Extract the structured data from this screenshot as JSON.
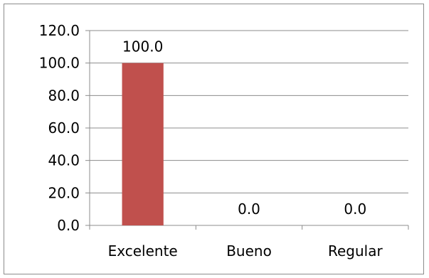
{
  "chart_data": {
    "type": "bar",
    "categories": [
      "Excelente",
      "Bueno",
      "Regular"
    ],
    "values": [
      100.0,
      0.0,
      0.0
    ],
    "data_labels": [
      "100.0",
      "0.0",
      "0.0"
    ],
    "yticks": [
      "0.0",
      "20.0",
      "40.0",
      "60.0",
      "80.0",
      "100.0",
      "120.0"
    ],
    "ylim": [
      0,
      120
    ],
    "grid": true,
    "legend": "none",
    "bar_color": "#c0504d",
    "title": "",
    "xlabel": "",
    "ylabel": ""
  }
}
